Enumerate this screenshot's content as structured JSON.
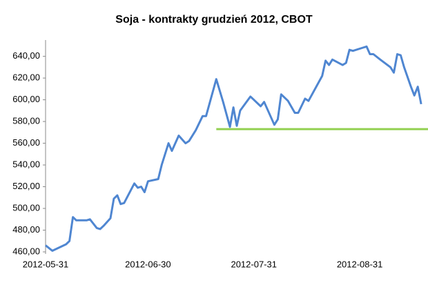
{
  "chart_data": {
    "type": "line",
    "title": "Soja - kontrakty grudzień 2012, CBOT",
    "x": [
      "2012-05-31",
      "2012-06-02",
      "2012-06-06",
      "2012-06-07",
      "2012-06-08",
      "2012-06-09",
      "2012-06-12",
      "2012-06-13",
      "2012-06-15",
      "2012-06-16",
      "2012-06-17",
      "2012-06-19",
      "2012-06-20",
      "2012-06-21",
      "2012-06-22",
      "2012-06-23",
      "2012-06-26",
      "2012-06-27",
      "2012-06-28",
      "2012-06-29",
      "2012-06-30",
      "2012-07-03",
      "2012-07-04",
      "2012-07-06",
      "2012-07-07",
      "2012-07-09",
      "2012-07-11",
      "2012-07-12",
      "2012-07-14",
      "2012-07-16",
      "2012-07-17",
      "2012-07-20",
      "2012-07-22",
      "2012-07-24",
      "2012-07-25",
      "2012-07-26",
      "2012-07-27",
      "2012-07-30",
      "2012-07-31",
      "2012-08-02",
      "2012-08-03",
      "2012-08-06",
      "2012-08-07",
      "2012-08-08",
      "2012-08-10",
      "2012-08-12",
      "2012-08-13",
      "2012-08-15",
      "2012-08-16",
      "2012-08-20",
      "2012-08-21",
      "2012-08-22",
      "2012-08-23",
      "2012-08-26",
      "2012-08-27",
      "2012-08-28",
      "2012-08-29",
      "2012-09-01",
      "2012-09-02",
      "2012-09-03",
      "2012-09-04",
      "2012-09-06",
      "2012-09-09",
      "2012-09-10",
      "2012-09-11",
      "2012-09-12",
      "2012-09-13",
      "2012-09-15",
      "2012-09-16",
      "2012-09-17",
      "2012-09-18"
    ],
    "series": [
      {
        "color": "#4f86d1",
        "values": [
          466,
          461,
          467,
          470,
          492,
          489,
          489,
          490,
          482,
          481,
          484,
          491,
          509,
          512,
          504,
          505,
          523,
          519,
          520,
          515,
          525,
          527,
          540,
          560,
          553,
          567,
          560,
          562,
          572,
          585,
          585,
          619,
          598,
          575,
          593,
          576,
          590,
          603,
          600,
          594,
          598,
          577,
          582,
          605,
          599,
          588,
          588,
          601,
          599,
          622,
          636,
          632,
          637,
          632,
          634,
          646,
          645,
          648,
          649,
          642,
          642,
          637,
          630,
          625,
          642,
          641,
          630,
          612,
          604,
          612,
          596
        ]
      }
    ],
    "xlim": [
      "2012-05-31",
      "2012-09-20"
    ],
    "xticks": [
      "2012-05-31",
      "2012-06-30",
      "2012-07-31",
      "2012-08-31"
    ],
    "ylim": [
      460,
      655
    ],
    "yticks": [
      {
        "value": 460,
        "label": "460,00"
      },
      {
        "value": 480,
        "label": "480,00"
      },
      {
        "value": 500,
        "label": "500,00"
      },
      {
        "value": 520,
        "label": "520,00"
      },
      {
        "value": 540,
        "label": "540,00"
      },
      {
        "value": 560,
        "label": "560,00"
      },
      {
        "value": 580,
        "label": "580,00"
      },
      {
        "value": 600,
        "label": "600,00"
      },
      {
        "value": 620,
        "label": "620,00"
      },
      {
        "value": 640,
        "label": "640,00"
      }
    ],
    "reference_line": {
      "y": 573,
      "x_start": "2012-07-20",
      "color": "#92d050"
    },
    "grid": false
  }
}
